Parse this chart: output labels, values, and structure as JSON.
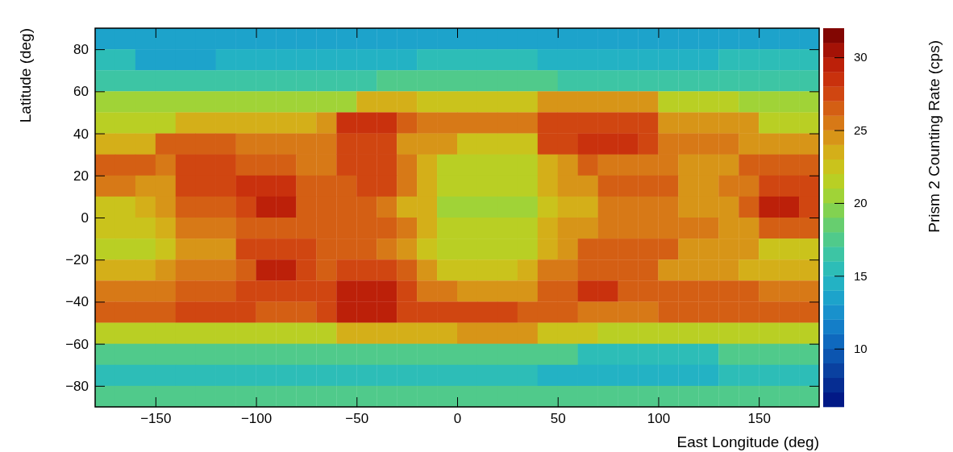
{
  "chart_data": {
    "type": "heatmap",
    "xlabel": "East Longitude (deg)",
    "ylabel": "Latitude (deg)",
    "clabel": "Prism 2 Counting Rate (cps)",
    "xlim": [
      -180,
      180
    ],
    "xticks": [
      -150,
      -100,
      -50,
      0,
      50,
      100,
      150
    ],
    "ylim": [
      -90,
      90
    ],
    "yticks": [
      -80,
      -60,
      -40,
      -20,
      0,
      20,
      40,
      60,
      80
    ],
    "clim": [
      6,
      32
    ],
    "cticks": [
      10,
      15,
      20,
      25,
      30
    ],
    "x": [
      -175,
      -165,
      -155,
      -145,
      -135,
      -125,
      -115,
      -105,
      -95,
      -85,
      -75,
      -65,
      -55,
      -45,
      -35,
      -25,
      -15,
      -5,
      5,
      15,
      25,
      35,
      45,
      55,
      65,
      75,
      85,
      95,
      105,
      115,
      125,
      135,
      145,
      155,
      165,
      175
    ],
    "y": [
      85,
      75,
      65,
      55,
      45,
      35,
      25,
      15,
      5,
      -5,
      -15,
      -25,
      -35,
      -45,
      -55,
      -65,
      -75,
      -85
    ],
    "cells": [
      [
        13,
        13,
        13,
        13,
        13,
        13,
        13,
        13,
        13,
        13,
        13,
        13,
        13,
        13,
        13,
        13,
        13,
        13,
        13,
        13,
        13,
        13,
        13,
        13,
        13,
        13,
        13,
        13,
        13,
        13,
        13,
        13,
        13,
        13,
        13,
        13
      ],
      [
        15,
        15,
        13,
        13,
        13,
        13,
        14,
        14,
        14,
        14,
        14,
        14,
        14,
        14,
        14,
        14,
        15,
        15,
        15,
        15,
        15,
        15,
        14,
        14,
        14,
        14,
        14,
        14,
        14,
        14,
        14,
        15,
        15,
        15,
        15,
        15
      ],
      [
        16,
        16,
        16,
        16,
        16,
        16,
        16,
        16,
        16,
        16,
        16,
        16,
        16,
        16,
        17,
        17,
        17,
        17,
        17,
        17,
        17,
        17,
        17,
        16,
        16,
        16,
        16,
        16,
        16,
        16,
        16,
        16,
        16,
        16,
        16,
        16
      ],
      [
        20,
        20,
        20,
        20,
        20,
        20,
        20,
        20,
        20,
        20,
        20,
        20,
        20,
        23,
        23,
        23,
        22,
        22,
        22,
        22,
        22,
        22,
        24,
        24,
        24,
        24,
        24,
        24,
        21,
        21,
        21,
        21,
        20,
        20,
        20,
        20
      ],
      [
        21,
        21,
        21,
        21,
        23,
        23,
        23,
        23,
        23,
        23,
        23,
        24,
        28,
        28,
        28,
        26,
        25,
        25,
        25,
        25,
        25,
        25,
        27,
        27,
        27,
        27,
        27,
        27,
        24,
        24,
        24,
        24,
        24,
        21,
        21,
        21
      ],
      [
        23,
        23,
        23,
        26,
        26,
        26,
        26,
        25,
        25,
        25,
        25,
        25,
        27,
        27,
        27,
        24,
        24,
        24,
        22,
        22,
        22,
        22,
        27,
        27,
        28,
        28,
        28,
        27,
        25,
        25,
        25,
        25,
        24,
        24,
        24,
        24
      ],
      [
        26,
        26,
        26,
        25,
        27,
        27,
        27,
        26,
        26,
        26,
        25,
        25,
        27,
        27,
        27,
        25,
        23,
        21,
        21,
        21,
        21,
        21,
        23,
        24,
        26,
        25,
        25,
        25,
        25,
        24,
        24,
        24,
        26,
        26,
        26,
        26
      ],
      [
        25,
        25,
        24,
        24,
        27,
        27,
        27,
        28,
        28,
        28,
        26,
        26,
        26,
        27,
        27,
        25,
        23,
        21,
        21,
        21,
        21,
        21,
        23,
        24,
        24,
        26,
        26,
        26,
        26,
        24,
        24,
        25,
        25,
        27,
        27,
        27
      ],
      [
        22,
        22,
        23,
        24,
        26,
        26,
        26,
        27,
        29,
        29,
        26,
        26,
        26,
        26,
        25,
        23,
        23,
        20,
        20,
        20,
        20,
        20,
        22,
        23,
        23,
        25,
        25,
        25,
        25,
        24,
        24,
        24,
        26,
        29,
        29,
        27
      ],
      [
        22,
        22,
        22,
        23,
        25,
        25,
        25,
        26,
        26,
        26,
        26,
        26,
        26,
        26,
        26,
        25,
        23,
        21,
        21,
        21,
        21,
        21,
        23,
        24,
        24,
        25,
        25,
        25,
        25,
        25,
        25,
        24,
        24,
        26,
        26,
        26
      ],
      [
        21,
        21,
        21,
        22,
        24,
        24,
        24,
        27,
        27,
        27,
        27,
        26,
        26,
        26,
        25,
        24,
        22,
        21,
        21,
        21,
        21,
        21,
        23,
        24,
        26,
        26,
        26,
        26,
        26,
        24,
        24,
        24,
        24,
        22,
        22,
        22
      ],
      [
        23,
        23,
        23,
        24,
        25,
        25,
        25,
        26,
        29,
        29,
        27,
        26,
        27,
        27,
        27,
        26,
        24,
        22,
        22,
        22,
        22,
        23,
        25,
        25,
        26,
        26,
        26,
        26,
        24,
        24,
        24,
        24,
        23,
        23,
        23,
        23
      ],
      [
        25,
        25,
        25,
        25,
        26,
        26,
        26,
        27,
        27,
        27,
        27,
        27,
        29,
        29,
        29,
        27,
        25,
        25,
        24,
        24,
        24,
        24,
        26,
        26,
        28,
        28,
        26,
        26,
        26,
        26,
        26,
        26,
        26,
        25,
        25,
        25
      ],
      [
        26,
        26,
        26,
        26,
        27,
        27,
        27,
        27,
        26,
        26,
        26,
        27,
        29,
        29,
        29,
        27,
        27,
        27,
        27,
        27,
        27,
        26,
        26,
        26,
        25,
        25,
        25,
        25,
        26,
        26,
        26,
        26,
        26,
        26,
        26,
        26
      ],
      [
        21,
        21,
        21,
        21,
        21,
        21,
        21,
        21,
        21,
        21,
        21,
        21,
        23,
        23,
        23,
        23,
        23,
        23,
        24,
        24,
        24,
        24,
        22,
        22,
        22,
        21,
        21,
        21,
        21,
        21,
        21,
        21,
        21,
        21,
        21,
        21
      ],
      [
        17,
        17,
        17,
        17,
        17,
        17,
        17,
        17,
        17,
        17,
        17,
        17,
        17,
        17,
        17,
        17,
        17,
        17,
        17,
        17,
        17,
        17,
        17,
        17,
        15,
        15,
        15,
        15,
        15,
        15,
        15,
        17,
        17,
        17,
        17,
        17
      ],
      [
        15,
        15,
        15,
        15,
        15,
        15,
        15,
        15,
        15,
        15,
        15,
        15,
        15,
        15,
        15,
        15,
        15,
        15,
        15,
        15,
        15,
        15,
        14,
        14,
        14,
        14,
        14,
        14,
        14,
        14,
        14,
        15,
        15,
        15,
        15,
        15
      ],
      [
        17,
        17,
        17,
        17,
        17,
        17,
        17,
        17,
        17,
        17,
        17,
        17,
        17,
        17,
        17,
        17,
        17,
        17,
        17,
        17,
        17,
        17,
        17,
        17,
        17,
        17,
        17,
        17,
        17,
        17,
        17,
        17,
        17,
        17,
        17,
        17
      ]
    ]
  }
}
